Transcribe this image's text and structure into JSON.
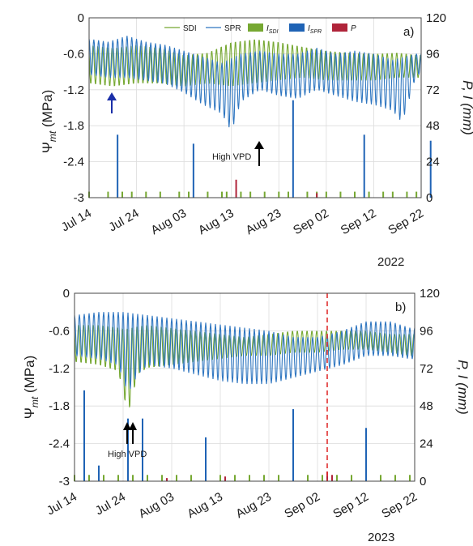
{
  "colors": {
    "sdi": "#76a832",
    "spr": "#2f76c0",
    "i_sdi": "#76a832",
    "i_spr": "#1f63b5",
    "p": "#b0243a",
    "grid": "#dcdcdc",
    "axis": "#444444",
    "arrow_blue": "#1b2fa8",
    "arrow_black": "#000000",
    "dashed_red": "#e03030"
  },
  "legend": {
    "sdi": "SDI",
    "spr": "SPR",
    "i_sdi_main": "I",
    "i_sdi_sub": "SDI",
    "i_spr_main": "I",
    "i_spr_sub": "SPR",
    "p": "P"
  },
  "axes": {
    "y_left_main": "Ψ",
    "y_left_sub": "mt",
    "y_left_unit": " (MPa)",
    "y_right": "P, I (mm)",
    "y_left_ticks": [
      "0",
      "-0.6",
      "-1.2",
      "-1.8",
      "-2.4",
      "-3"
    ],
    "y_right_ticks": [
      "120",
      "96",
      "72",
      "48",
      "24",
      "0"
    ],
    "x_ticks": [
      "Jul 14",
      "Jul 24",
      "Aug 03",
      "Aug 13",
      "Aug 23",
      "Sep 02",
      "Sep 12",
      "Sep 22"
    ]
  },
  "chart_data": [
    {
      "type": "line",
      "panel_label": "a)",
      "year": "2022",
      "x_range": [
        "2022-07-14",
        "2022-09-22"
      ],
      "ylim_left": [
        -3,
        0
      ],
      "ylim_right": [
        0,
        120
      ],
      "grid": true,
      "legend_position": "top",
      "annotation": {
        "text": "High VPD",
        "date": "2022-08-19"
      },
      "blue_arrow_date": "2022-07-20",
      "series": [
        {
          "name": "SDI",
          "axis": "left",
          "kind": "diurnal",
          "max": [
            [
              0,
              -0.45
            ],
            [
              5,
              -0.5
            ],
            [
              10,
              -0.45
            ],
            [
              15,
              -0.5
            ],
            [
              20,
              -0.62
            ],
            [
              25,
              -0.58
            ],
            [
              30,
              -0.4
            ],
            [
              35,
              -0.35
            ],
            [
              40,
              -0.4
            ],
            [
              45,
              -0.48
            ],
            [
              50,
              -0.55
            ],
            [
              55,
              -0.58
            ],
            [
              60,
              -0.6
            ],
            [
              65,
              -0.58
            ],
            [
              69,
              -0.62
            ]
          ],
          "min": [
            [
              0,
              -1.1
            ],
            [
              5,
              -1.15
            ],
            [
              10,
              -1.1
            ],
            [
              15,
              -1.1
            ],
            [
              20,
              -1.15
            ],
            [
              25,
              -1.1
            ],
            [
              30,
              -1.15
            ],
            [
              35,
              -1.1
            ],
            [
              40,
              -1.05
            ],
            [
              45,
              -1.0
            ],
            [
              50,
              -1.05
            ],
            [
              55,
              -1.05
            ],
            [
              60,
              -1.05
            ],
            [
              65,
              -1.0
            ],
            [
              69,
              -1.0
            ]
          ]
        },
        {
          "name": "SPR",
          "axis": "left",
          "kind": "diurnal",
          "max": [
            [
              0,
              -0.35
            ],
            [
              4,
              -0.4
            ],
            [
              8,
              -0.3
            ],
            [
              12,
              -0.4
            ],
            [
              16,
              -0.45
            ],
            [
              20,
              -0.55
            ],
            [
              24,
              -0.65
            ],
            [
              28,
              -0.75
            ],
            [
              32,
              -0.6
            ],
            [
              36,
              -0.55
            ],
            [
              40,
              -0.6
            ],
            [
              44,
              -0.6
            ],
            [
              48,
              -0.5
            ],
            [
              52,
              -0.6
            ],
            [
              56,
              -0.55
            ],
            [
              60,
              -0.6
            ],
            [
              64,
              -0.7
            ],
            [
              69,
              -0.6
            ]
          ],
          "min": [
            [
              0,
              -0.95
            ],
            [
              4,
              -1.0
            ],
            [
              8,
              -1.0
            ],
            [
              12,
              -1.05
            ],
            [
              16,
              -1.1
            ],
            [
              20,
              -1.25
            ],
            [
              24,
              -1.45
            ],
            [
              28,
              -1.6
            ],
            [
              30,
              -1.9
            ],
            [
              32,
              -1.4
            ],
            [
              36,
              -1.2
            ],
            [
              40,
              -1.3
            ],
            [
              44,
              -1.35
            ],
            [
              48,
              -1.2
            ],
            [
              52,
              -1.3
            ],
            [
              56,
              -1.4
            ],
            [
              60,
              -1.45
            ],
            [
              64,
              -1.55
            ],
            [
              66,
              -1.75
            ],
            [
              69,
              -0.95
            ]
          ]
        },
        {
          "name": "I_SDI",
          "axis": "right",
          "kind": "bars",
          "points": [
            [
              0,
              4
            ],
            [
              4,
              4
            ],
            [
              7,
              4
            ],
            [
              9,
              4
            ],
            [
              12,
              4
            ],
            [
              15,
              4
            ],
            [
              19,
              4
            ],
            [
              21,
              4
            ],
            [
              25,
              4
            ],
            [
              28,
              4
            ],
            [
              29,
              4
            ],
            [
              32,
              4
            ],
            [
              34,
              4
            ],
            [
              37,
              4
            ],
            [
              40,
              4
            ],
            [
              42,
              4
            ],
            [
              46,
              4
            ],
            [
              48,
              4
            ],
            [
              50,
              4
            ],
            [
              53,
              4
            ],
            [
              56,
              4
            ],
            [
              59,
              4
            ],
            [
              62,
              4
            ],
            [
              64,
              4
            ],
            [
              67,
              4
            ],
            [
              69,
              4
            ]
          ]
        },
        {
          "name": "I_SPR",
          "axis": "right",
          "kind": "bars",
          "points": [
            [
              6,
              42
            ],
            [
              22,
              36
            ],
            [
              43,
              65
            ],
            [
              58,
              42
            ],
            [
              72,
              38
            ]
          ]
        },
        {
          "name": "P",
          "axis": "right",
          "kind": "bars",
          "points": [
            [
              31,
              12
            ],
            [
              48,
              3
            ]
          ]
        }
      ]
    },
    {
      "type": "line",
      "panel_label": "b)",
      "year": "2023",
      "x_range": [
        "2023-07-14",
        "2023-09-22"
      ],
      "ylim_left": [
        -3,
        0
      ],
      "ylim_right": [
        0,
        120
      ],
      "grid": true,
      "annotation": {
        "text": "High VPD",
        "date": "2023-07-25"
      },
      "dashed_line_date": "2023-09-04",
      "series": [
        {
          "name": "SDI",
          "axis": "left",
          "kind": "diurnal",
          "max": [
            [
              0,
              -0.5
            ],
            [
              5,
              -0.5
            ],
            [
              10,
              -0.55
            ],
            [
              15,
              -0.5
            ],
            [
              20,
              -0.55
            ],
            [
              25,
              -0.6
            ],
            [
              30,
              -0.65
            ],
            [
              35,
              -0.7
            ],
            [
              40,
              -0.65
            ],
            [
              45,
              -0.6
            ],
            [
              50,
              -0.6
            ],
            [
              55,
              -0.6
            ],
            [
              60,
              -0.6
            ],
            [
              65,
              -0.65
            ],
            [
              69,
              -0.65
            ]
          ],
          "min": [
            [
              0,
              -1.1
            ],
            [
              5,
              -1.15
            ],
            [
              9,
              -1.25
            ],
            [
              11,
              -1.95
            ],
            [
              13,
              -1.3
            ],
            [
              15,
              -1.2
            ],
            [
              20,
              -1.15
            ],
            [
              25,
              -1.1
            ],
            [
              30,
              -1.05
            ],
            [
              35,
              -1.0
            ],
            [
              40,
              -1.0
            ],
            [
              45,
              -0.95
            ],
            [
              50,
              -0.95
            ],
            [
              55,
              -0.9
            ],
            [
              60,
              -0.9
            ],
            [
              65,
              -0.95
            ],
            [
              69,
              -1.0
            ]
          ]
        },
        {
          "name": "SPR",
          "axis": "left",
          "kind": "diurnal",
          "max": [
            [
              0,
              -0.35
            ],
            [
              5,
              -0.3
            ],
            [
              10,
              -0.3
            ],
            [
              15,
              -0.35
            ],
            [
              20,
              -0.4
            ],
            [
              25,
              -0.45
            ],
            [
              30,
              -0.5
            ],
            [
              35,
              -0.55
            ],
            [
              40,
              -0.6
            ],
            [
              45,
              -0.7
            ],
            [
              50,
              -0.7
            ],
            [
              55,
              -0.6
            ],
            [
              60,
              -0.45
            ],
            [
              65,
              -0.45
            ],
            [
              69,
              -0.55
            ]
          ],
          "min": [
            [
              0,
              -1.0
            ],
            [
              5,
              -1.05
            ],
            [
              9,
              -1.15
            ],
            [
              11,
              -1.6
            ],
            [
              13,
              -1.3
            ],
            [
              15,
              -1.15
            ],
            [
              20,
              -1.2
            ],
            [
              25,
              -1.3
            ],
            [
              30,
              -1.4
            ],
            [
              35,
              -1.45
            ],
            [
              40,
              -1.45
            ],
            [
              45,
              -1.35
            ],
            [
              50,
              -1.25
            ],
            [
              55,
              -1.15
            ],
            [
              60,
              -1.0
            ],
            [
              65,
              -1.0
            ],
            [
              69,
              -1.05
            ]
          ]
        },
        {
          "name": "I_SDI",
          "axis": "right",
          "kind": "bars",
          "points": [
            [
              0,
              4
            ],
            [
              3,
              4
            ],
            [
              6,
              4
            ],
            [
              9,
              4
            ],
            [
              12,
              4
            ],
            [
              15,
              4
            ],
            [
              18,
              4
            ],
            [
              21,
              4
            ],
            [
              24,
              4
            ],
            [
              27,
              4
            ],
            [
              30,
              4
            ],
            [
              33,
              4
            ],
            [
              36,
              4
            ],
            [
              39,
              4
            ],
            [
              42,
              4
            ],
            [
              45,
              4
            ],
            [
              48,
              4
            ],
            [
              51,
              4
            ],
            [
              54,
              4
            ],
            [
              57,
              4
            ],
            [
              60,
              4
            ],
            [
              63,
              4
            ],
            [
              66,
              4
            ],
            [
              69,
              4
            ]
          ]
        },
        {
          "name": "I_SPR",
          "axis": "right",
          "kind": "bars",
          "points": [
            [
              2,
              58
            ],
            [
              5,
              10
            ],
            [
              11,
              40
            ],
            [
              14,
              40
            ],
            [
              27,
              28
            ],
            [
              45,
              46
            ],
            [
              60,
              34
            ]
          ]
        },
        {
          "name": "P",
          "axis": "right",
          "kind": "bars",
          "points": [
            [
              19,
              2
            ],
            [
              31,
              3
            ],
            [
              52,
              6
            ],
            [
              53,
              4
            ]
          ]
        }
      ]
    }
  ]
}
